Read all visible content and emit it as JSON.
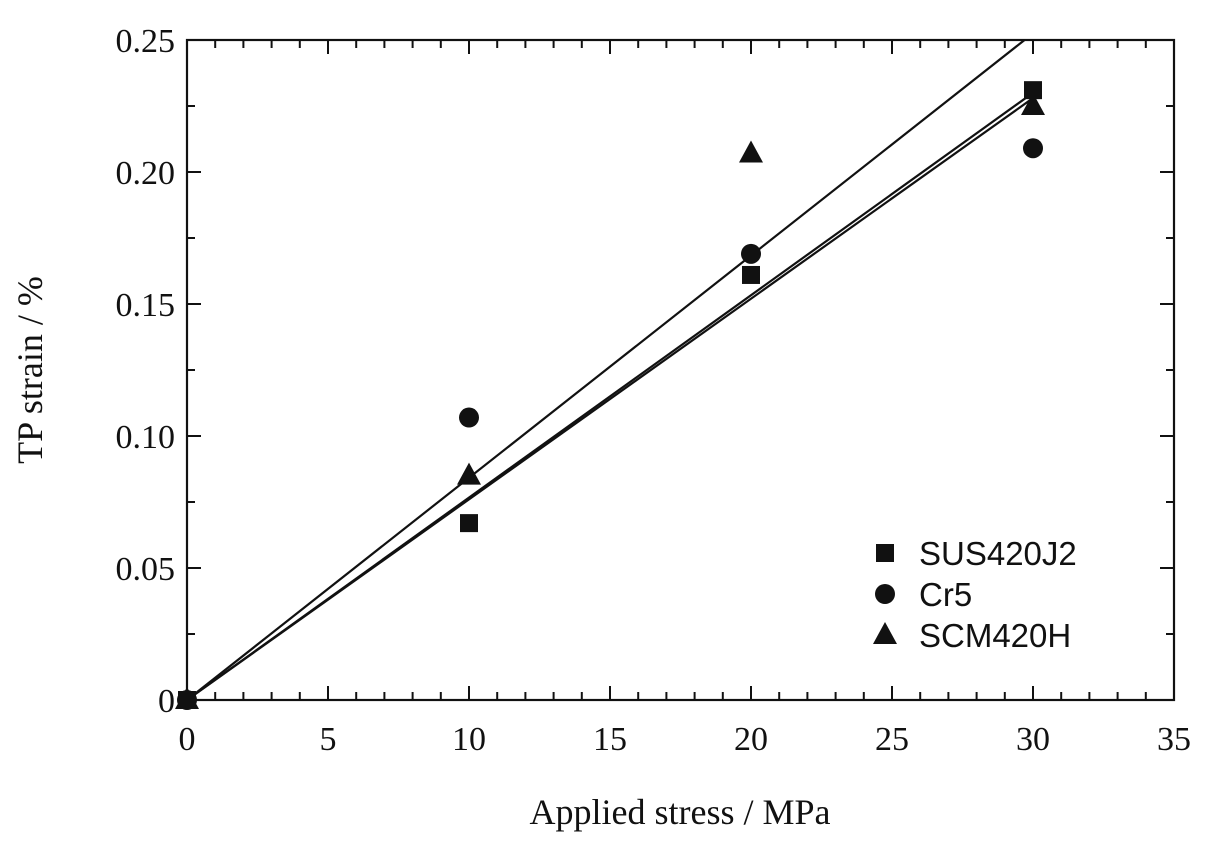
{
  "chart_data": {
    "type": "scatter",
    "title": "",
    "xlabel": "Applied stress / MPa",
    "ylabel": "TP strain / %",
    "xlim": [
      0,
      35
    ],
    "ylim": [
      0,
      0.25
    ],
    "x_ticks": [
      0,
      5,
      10,
      15,
      20,
      25,
      30,
      35
    ],
    "y_ticks": [
      0,
      0.05,
      0.1,
      0.15,
      0.2,
      0.25
    ],
    "x_tick_labels": [
      "0",
      "5",
      "10",
      "15",
      "20",
      "25",
      "30",
      "35"
    ],
    "y_tick_labels": [
      "0",
      "0.05",
      "0.10",
      "0.15",
      "0.20",
      "0.25"
    ],
    "grid": false,
    "legend_position": "bottom-right",
    "series": [
      {
        "name": "SUS420J2",
        "marker": "square",
        "color": "#111111",
        "x": [
          0,
          10,
          20,
          30
        ],
        "y": [
          0,
          0.067,
          0.161,
          0.231
        ],
        "fit_line": {
          "x": [
            0,
            30
          ],
          "y": [
            0,
            0.23
          ]
        }
      },
      {
        "name": "Cr5",
        "marker": "circle",
        "color": "#111111",
        "x": [
          0,
          10,
          20,
          30
        ],
        "y": [
          0,
          0.107,
          0.169,
          0.209
        ],
        "fit_line": {
          "x": [
            0,
            30
          ],
          "y": [
            0,
            0.228
          ]
        }
      },
      {
        "name": "SCM420H",
        "marker": "triangle",
        "color": "#111111",
        "x": [
          0,
          10,
          20,
          30
        ],
        "y": [
          0,
          0.085,
          0.207,
          0.225
        ],
        "fit_line": {
          "x": [
            0,
            29.7
          ],
          "y": [
            0,
            0.25
          ]
        }
      }
    ]
  }
}
